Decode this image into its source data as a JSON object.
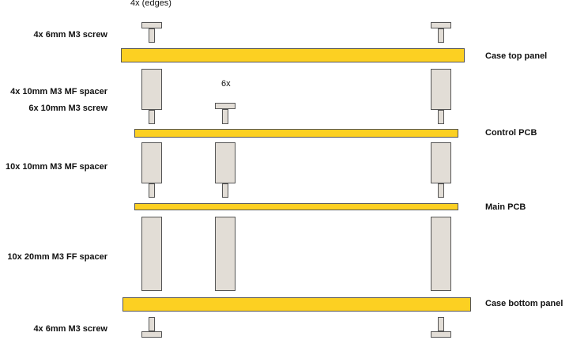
{
  "notes": {
    "edges": "4x (edges)",
    "six": "6x"
  },
  "labels": {
    "top_screw": "4x 6mm M3 screw",
    "mf_spacer_4x": "4x 10mm M3 MF spacer",
    "screw_6x": "6x 10mm M3 screw",
    "mf_spacer_10x": "10x 10mm M3 MF spacer",
    "ff_spacer": "10x 20mm M3 FF spacer",
    "bottom_screw": "4x 6mm M3 screw"
  },
  "layers": {
    "case_top": "Case top panel",
    "control_pcb": "Control PCB",
    "main_pcb": "Main PCB",
    "case_bottom": "Case bottom panel"
  },
  "colors": {
    "panel": "#fcd022",
    "hardware": "#e2ddd6",
    "outline": "#555555"
  }
}
